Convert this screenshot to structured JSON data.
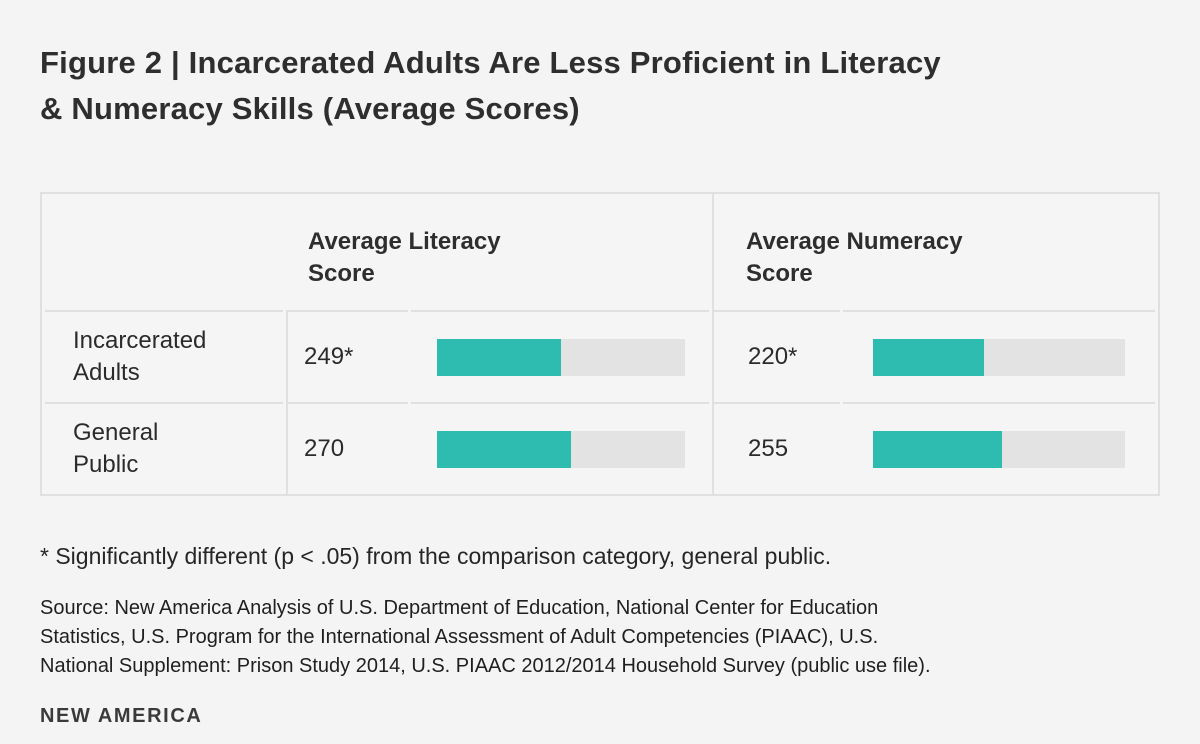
{
  "chart_data": {
    "type": "bar",
    "title_line1": "Figure 2 | Incarcerated Adults Are Less Proficient in Literacy",
    "title_line2": "& Numeracy Skills (Average Scores)",
    "columns": [
      "Average Literacy Score",
      "Average Numeracy Score"
    ],
    "categories": [
      "Incarcerated Adults",
      "General Public"
    ],
    "series": [
      {
        "name": "Average Literacy Score",
        "values": [
          249,
          270
        ],
        "labels": [
          "249*",
          "270"
        ]
      },
      {
        "name": "Average Numeracy Score",
        "values": [
          220,
          255
        ],
        "labels": [
          "220*",
          "255"
        ]
      }
    ],
    "scale": {
      "min": 0,
      "max": 500
    },
    "bar_color": "#2FBCB0",
    "bar_track_color": "#E3E3E3",
    "layout": {
      "legend": "none",
      "grid": "off",
      "orientation": "horizontal"
    },
    "footnote": "* Significantly different (p < .05) from the comparison category, general public.",
    "source_lines": [
      "Source: New America Analysis of U.S. Department of Education, National Center for Education",
      "Statistics, U.S. Program for the International Assessment of Adult Competencies (PIAAC), U.S.",
      "National Supplement: Prison Study 2014, U.S. PIAAC 2012/2014 Household Survey (public use file)."
    ],
    "brand": "NEW AMERICA"
  }
}
